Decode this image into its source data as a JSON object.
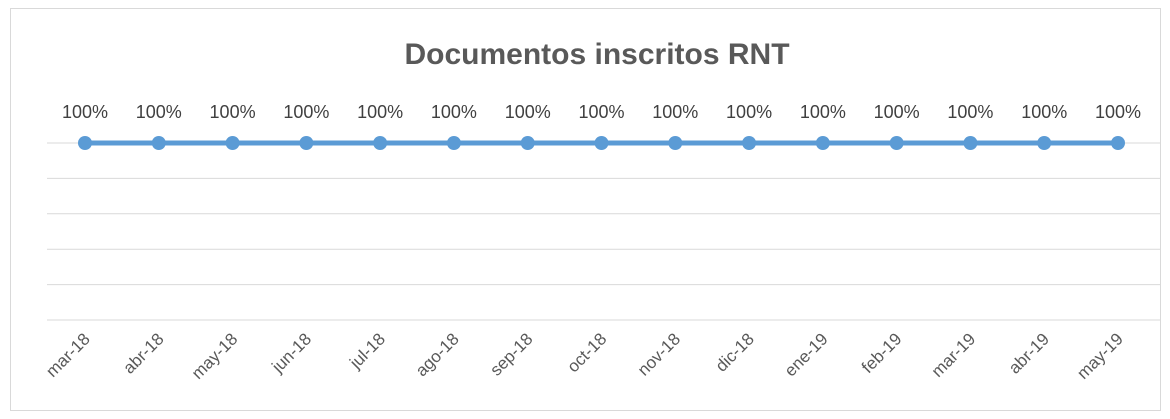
{
  "chart_data": {
    "type": "line",
    "title": "Documentos inscritos RNT",
    "categories": [
      "mar-18",
      "abr-18",
      "may-18",
      "jun-18",
      "jul-18",
      "ago-18",
      "sep-18",
      "oct-18",
      "nov-18",
      "dic-18",
      "ene-19",
      "feb-19",
      "mar-19",
      "abr-19",
      "may-19"
    ],
    "values": [
      100,
      100,
      100,
      100,
      100,
      100,
      100,
      100,
      100,
      100,
      100,
      100,
      100,
      100,
      100
    ],
    "value_labels": [
      "100%",
      "100%",
      "100%",
      "100%",
      "100%",
      "100%",
      "100%",
      "100%",
      "100%",
      "100%",
      "100%",
      "100%",
      "100%",
      "100%",
      "100%"
    ],
    "color": "#5b9bd5",
    "ylim": [
      0,
      100
    ],
    "yticks": [
      0,
      20,
      40,
      60,
      80,
      100
    ],
    "grid": true
  }
}
